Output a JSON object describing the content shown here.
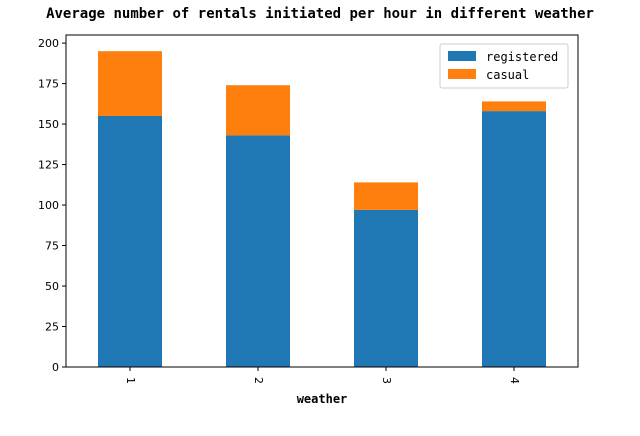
{
  "chart_data": {
    "type": "bar",
    "stacked": true,
    "title": "Average number of rentals initiated per hour in different weather",
    "xlabel": "weather",
    "ylabel": "",
    "categories": [
      "1",
      "2",
      "3",
      "4"
    ],
    "series": [
      {
        "name": "registered",
        "values": [
          155,
          143,
          97,
          158
        ],
        "color": "#1f77b4"
      },
      {
        "name": "casual",
        "values": [
          40,
          31,
          17,
          6
        ],
        "color": "#ff7f0e"
      }
    ],
    "ylim": [
      0,
      205
    ],
    "yticks": [
      "0",
      "25",
      "50",
      "75",
      "100",
      "125",
      "150",
      "175",
      "200"
    ],
    "grid": false,
    "legend_position": "top-right"
  }
}
